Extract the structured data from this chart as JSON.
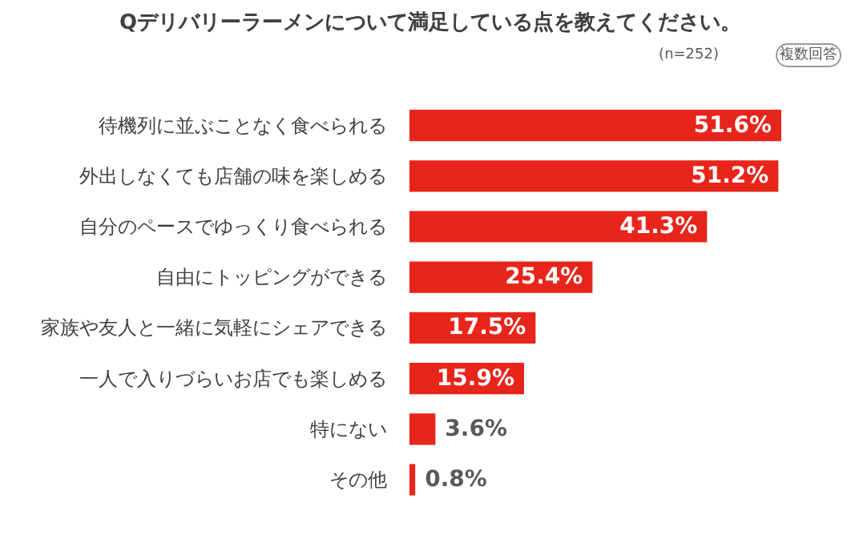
{
  "chart_data": {
    "type": "bar",
    "orientation": "horizontal",
    "title": "Qデリバリーラーメンについて満足している点を教えてください。",
    "annotations": [
      "(n=252)",
      "複数回答"
    ],
    "categories": [
      "待機列に並ぶことなく食べられる",
      "外出しなくても店舗の味を楽しめる",
      "自分のペースでゆっくり食べられる",
      "自由にトッピングができる",
      "家族や友人と一緒に気軽にシェアできる",
      "一人で入りづらいお店でも楽しめる",
      "特にない",
      "その他"
    ],
    "values": [
      51.6,
      51.2,
      41.3,
      25.4,
      17.5,
      15.9,
      3.6,
      0.8
    ],
    "value_labels": [
      "51.6%",
      "51.2%",
      "41.3%",
      "25.4%",
      "17.5%",
      "15.9%",
      "3.6%",
      "0.8%"
    ],
    "color": "#e8251b",
    "grid": false
  }
}
